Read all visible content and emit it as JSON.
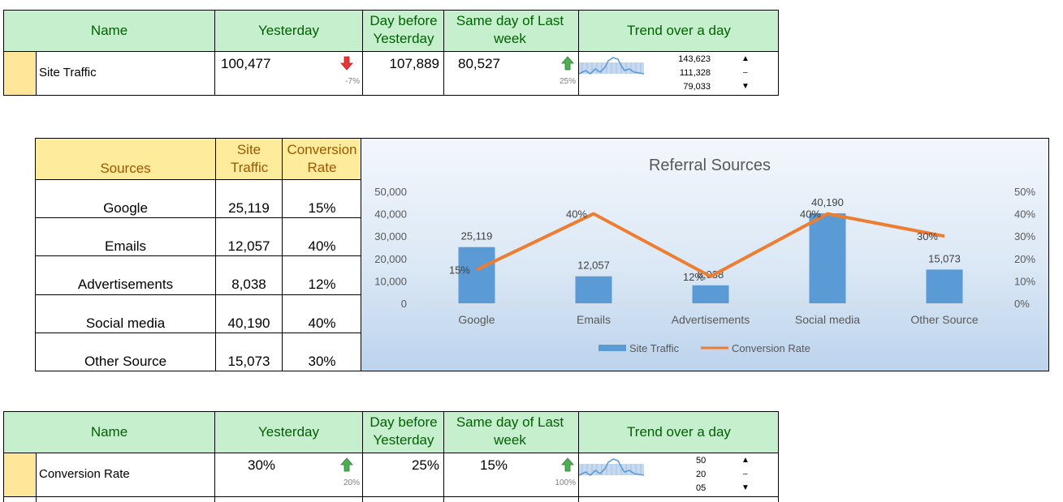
{
  "kpi_top": {
    "headers": [
      "Name",
      "Yesterday",
      "Day before Yesterday",
      "Same day of Last week",
      "Trend over a day"
    ],
    "row": {
      "name": "Site Traffic",
      "yesterday": "100,477",
      "yesterday_change": "-7%",
      "yesterday_arrow": "down",
      "day_before": "107,889",
      "last_week": "80,527",
      "last_week_change": "25%",
      "last_week_arrow": "up",
      "trend_max": "143,623",
      "trend_mid": "111,328",
      "trend_min": "79,033"
    }
  },
  "sources_table": {
    "headers": [
      "Sources",
      "Site Traffic",
      "Conversion Rate"
    ],
    "rows": [
      {
        "source": "Google",
        "traffic": "25,119",
        "rate": "15%"
      },
      {
        "source": "Emails",
        "traffic": "12,057",
        "rate": "40%"
      },
      {
        "source": "Advertisements",
        "traffic": "8,038",
        "rate": "12%"
      },
      {
        "source": "Social media",
        "traffic": "40,190",
        "rate": "40%"
      },
      {
        "source": "Other Source",
        "traffic": "15,073",
        "rate": "30%"
      }
    ]
  },
  "chart_data": {
    "type": "bar",
    "title": "Referral Sources",
    "categories": [
      "Google",
      "Emails",
      "Advertisements",
      "Social media",
      "Other Source"
    ],
    "series": [
      {
        "name": "Site Traffic",
        "type": "bar",
        "axis": "left",
        "values": [
          25119,
          12057,
          8038,
          40190,
          15073
        ],
        "labels": [
          "25,119",
          "12,057",
          "8,038",
          "40,190",
          "15,073"
        ],
        "color": "#5b9bd5"
      },
      {
        "name": "Conversion Rate",
        "type": "line",
        "axis": "right",
        "values": [
          15,
          40,
          12,
          40,
          30
        ],
        "labels": [
          "15%",
          "40%",
          "12%",
          "40%",
          "30%"
        ],
        "color": "#ed7d31"
      }
    ],
    "ylim": [
      0,
      50000
    ],
    "y2lim": [
      0,
      50
    ],
    "y_ticks": [
      "0",
      "10,000",
      "20,000",
      "30,000",
      "40,000",
      "50,000"
    ],
    "y2_ticks": [
      "0%",
      "10%",
      "20%",
      "30%",
      "40%",
      "50%"
    ],
    "grid": false,
    "legend": "bottom"
  },
  "kpi_bottom": {
    "headers": [
      "Name",
      "Yesterday",
      "Day before Yesterday",
      "Same day of Last week",
      "Trend over a day"
    ],
    "row": {
      "name": "Conversion Rate",
      "yesterday": "30%",
      "yesterday_change": "20%",
      "yesterday_arrow": "up",
      "day_before": "25%",
      "last_week": "15%",
      "last_week_change": "100%",
      "last_week_arrow": "up",
      "trend_max": "50",
      "trend_mid": "20",
      "trend_min": "05"
    }
  },
  "colors": {
    "header_green_bg": "#c6efce",
    "header_green_text": "#006100",
    "header_yellow_bg": "#ffeb9c",
    "header_yellow_text": "#9c5700",
    "arrow_up": "#4caf50",
    "arrow_down": "#e53935",
    "bar_blue": "#5b9bd5",
    "line_orange": "#ed7d31"
  }
}
